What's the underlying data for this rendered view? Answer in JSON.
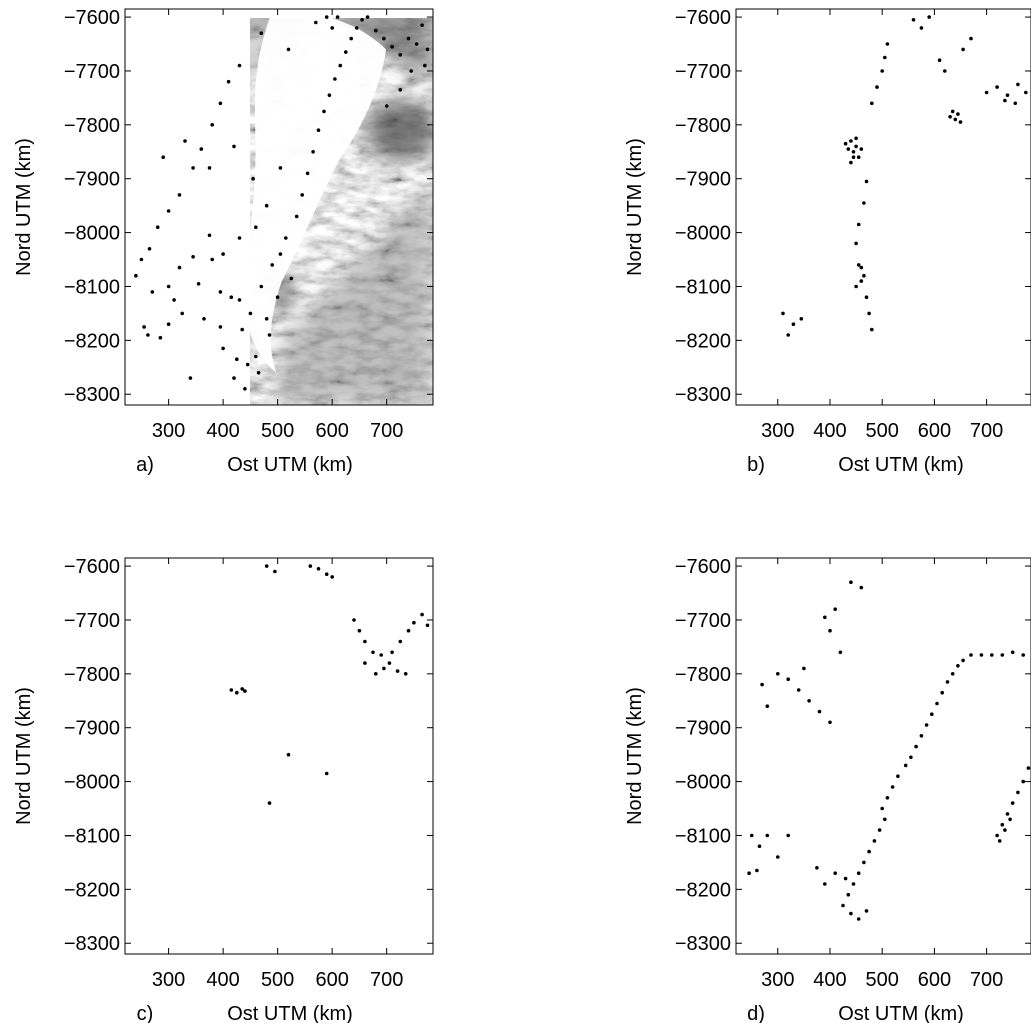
{
  "figure": {
    "ylabel": "Nord UTM (km)",
    "xlabel": "Ost UTM (km)",
    "colors": {
      "points": "#000000",
      "frame": "#000000"
    },
    "panels": [
      {
        "label": "a)"
      },
      {
        "label": "b)"
      },
      {
        "label": "c)"
      },
      {
        "label": "d)"
      }
    ]
  },
  "chart_data": [
    {
      "type": "scatter",
      "panel": "a)",
      "xlabel": "Ost UTM (km)",
      "ylabel": "Nord UTM (km)",
      "xlim": [
        220,
        785
      ],
      "ylim": [
        -8320,
        -7585
      ],
      "xticks": [
        300,
        400,
        500,
        600,
        700
      ],
      "yticks": [
        -7600,
        -7700,
        -7800,
        -7900,
        -8000,
        -8100,
        -8200,
        -8300
      ],
      "background": "grayscale satellite image of sea ice",
      "series": [
        {
          "values": [
            [
              240,
              -8080
            ],
            [
              255,
              -8175
            ],
            [
              262,
              -8190
            ],
            [
              270,
              -8110
            ],
            [
              285,
              -8195
            ],
            [
              300,
              -8170
            ],
            [
              310,
              -8125
            ],
            [
              325,
              -8150
            ],
            [
              340,
              -8270
            ],
            [
              355,
              -8095
            ],
            [
              365,
              -8160
            ],
            [
              380,
              -8050
            ],
            [
              395,
              -8175
            ],
            [
              400,
              -8215
            ],
            [
              415,
              -8120
            ],
            [
              425,
              -8235
            ],
            [
              435,
              -8180
            ],
            [
              445,
              -8245
            ],
            [
              450,
              -8150
            ],
            [
              460,
              -8230
            ],
            [
              470,
              -8100
            ],
            [
              480,
              -8160
            ],
            [
              490,
              -8060
            ],
            [
              500,
              -8120
            ],
            [
              505,
              -8040
            ],
            [
              515,
              -8010
            ],
            [
              525,
              -8085
            ],
            [
              535,
              -7970
            ],
            [
              545,
              -7930
            ],
            [
              555,
              -7890
            ],
            [
              565,
              -7850
            ],
            [
              575,
              -7810
            ],
            [
              585,
              -7775
            ],
            [
              595,
              -7745
            ],
            [
              605,
              -7715
            ],
            [
              615,
              -7690
            ],
            [
              625,
              -7665
            ],
            [
              635,
              -7640
            ],
            [
              645,
              -7620
            ],
            [
              655,
              -7605
            ],
            [
              665,
              -7600
            ],
            [
              680,
              -7625
            ],
            [
              695,
              -7640
            ],
            [
              710,
              -7655
            ],
            [
              725,
              -7670
            ],
            [
              740,
              -7640
            ],
            [
              755,
              -7650
            ],
            [
              765,
              -7615
            ],
            [
              775,
              -7660
            ],
            [
              770,
              -7690
            ],
            [
              745,
              -7700
            ],
            [
              725,
              -7735
            ],
            [
              700,
              -7765
            ],
            [
              600,
              -7620
            ],
            [
              590,
              -7600
            ],
            [
              610,
              -7600
            ],
            [
              570,
              -7610
            ],
            [
              520,
              -7660
            ],
            [
              470,
              -7630
            ],
            [
              430,
              -7690
            ],
            [
              410,
              -7720
            ],
            [
              395,
              -7760
            ],
            [
              380,
              -7800
            ],
            [
              360,
              -7845
            ],
            [
              345,
              -7880
            ],
            [
              320,
              -7930
            ],
            [
              300,
              -7960
            ],
            [
              280,
              -7990
            ],
            [
              265,
              -8030
            ],
            [
              250,
              -8050
            ],
            [
              290,
              -7860
            ],
            [
              330,
              -7830
            ],
            [
              375,
              -7880
            ],
            [
              420,
              -7840
            ],
            [
              455,
              -7900
            ],
            [
              480,
              -7950
            ],
            [
              505,
              -7880
            ],
            [
              460,
              -7990
            ],
            [
              430,
              -8010
            ],
            [
              400,
              -8040
            ],
            [
              375,
              -8005
            ],
            [
              345,
              -8045
            ],
            [
              320,
              -8065
            ],
            [
              300,
              -8100
            ],
            [
              420,
              -8270
            ],
            [
              440,
              -8290
            ],
            [
              465,
              -8260
            ],
            [
              485,
              -8190
            ],
            [
              430,
              -8125
            ],
            [
              395,
              -8110
            ]
          ]
        }
      ]
    },
    {
      "type": "scatter",
      "panel": "b)",
      "xlabel": "Ost UTM (km)",
      "ylabel": "Nord UTM (km)",
      "xlim": [
        220,
        785
      ],
      "ylim": [
        -8320,
        -7585
      ],
      "xticks": [
        300,
        400,
        500,
        600,
        700
      ],
      "yticks": [
        -7600,
        -7700,
        -7800,
        -7900,
        -8000,
        -8100,
        -8200,
        -8300
      ],
      "background": "grayscale satellite image of sea ice",
      "series": [
        {
          "values": [
            [
              430,
              -7835
            ],
            [
              435,
              -7845
            ],
            [
              440,
              -7830
            ],
            [
              445,
              -7850
            ],
            [
              450,
              -7840
            ],
            [
              455,
              -7860
            ],
            [
              440,
              -7870
            ],
            [
              450,
              -7825
            ],
            [
              460,
              -7845
            ],
            [
              445,
              -7860
            ],
            [
              630,
              -7785
            ],
            [
              640,
              -7790
            ],
            [
              645,
              -7780
            ],
            [
              635,
              -7775
            ],
            [
              650,
              -7795
            ],
            [
              700,
              -7740
            ],
            [
              720,
              -7730
            ],
            [
              740,
              -7745
            ],
            [
              760,
              -7725
            ],
            [
              775,
              -7740
            ],
            [
              755,
              -7760
            ],
            [
              735,
              -7755
            ],
            [
              480,
              -7760
            ],
            [
              490,
              -7730
            ],
            [
              500,
              -7700
            ],
            [
              505,
              -7675
            ],
            [
              510,
              -7650
            ],
            [
              575,
              -7620
            ],
            [
              590,
              -7600
            ],
            [
              560,
              -7605
            ],
            [
              470,
              -7905
            ],
            [
              465,
              -7945
            ],
            [
              455,
              -7985
            ],
            [
              450,
              -8020
            ],
            [
              455,
              -8060
            ],
            [
              460,
              -8090
            ],
            [
              470,
              -8120
            ],
            [
              475,
              -8150
            ],
            [
              480,
              -8180
            ],
            [
              460,
              -8065
            ],
            [
              465,
              -8080
            ],
            [
              450,
              -8100
            ],
            [
              330,
              -8170
            ],
            [
              320,
              -8190
            ],
            [
              310,
              -8150
            ],
            [
              345,
              -8160
            ],
            [
              620,
              -7700
            ],
            [
              610,
              -7680
            ],
            [
              655,
              -7660
            ],
            [
              670,
              -7640
            ]
          ]
        }
      ]
    },
    {
      "type": "scatter",
      "panel": "c)",
      "xlabel": "Ost UTM (km)",
      "ylabel": "Nord UTM (km)",
      "xlim": [
        220,
        785
      ],
      "ylim": [
        -8320,
        -7585
      ],
      "xticks": [
        300,
        400,
        500,
        600,
        700
      ],
      "yticks": [
        -7600,
        -7700,
        -7800,
        -7900,
        -8000,
        -8100,
        -8200,
        -8300
      ],
      "background": "grayscale satellite image of sea ice",
      "series": [
        {
          "values": [
            [
              415,
              -7830
            ],
            [
              425,
              -7835
            ],
            [
              435,
              -7828
            ],
            [
              440,
              -7832
            ],
            [
              480,
              -7600
            ],
            [
              495,
              -7610
            ],
            [
              560,
              -7600
            ],
            [
              575,
              -7605
            ],
            [
              590,
              -7615
            ],
            [
              600,
              -7620
            ],
            [
              640,
              -7700
            ],
            [
              650,
              -7720
            ],
            [
              660,
              -7740
            ],
            [
              675,
              -7760
            ],
            [
              690,
              -7765
            ],
            [
              705,
              -7780
            ],
            [
              720,
              -7795
            ],
            [
              735,
              -7800
            ],
            [
              750,
              -7705
            ],
            [
              765,
              -7690
            ],
            [
              775,
              -7710
            ],
            [
              740,
              -7720
            ],
            [
              725,
              -7740
            ],
            [
              710,
              -7760
            ],
            [
              695,
              -7790
            ],
            [
              680,
              -7800
            ],
            [
              660,
              -7780
            ],
            [
              590,
              -7985
            ],
            [
              520,
              -7950
            ],
            [
              485,
              -8040
            ]
          ]
        }
      ]
    },
    {
      "type": "scatter",
      "panel": "d)",
      "xlabel": "Ost UTM (km)",
      "ylabel": "Nord UTM (km)",
      "xlim": [
        220,
        785
      ],
      "ylim": [
        -8320,
        -7585
      ],
      "xticks": [
        300,
        400,
        500,
        600,
        700
      ],
      "yticks": [
        -7600,
        -7700,
        -7800,
        -7900,
        -8000,
        -8100,
        -8200,
        -8300
      ],
      "background": "grayscale satellite image of sea ice",
      "series": [
        {
          "values": [
            [
              500,
              -8050
            ],
            [
              510,
              -8030
            ],
            [
              520,
              -8010
            ],
            [
              530,
              -7990
            ],
            [
              545,
              -7970
            ],
            [
              555,
              -7955
            ],
            [
              565,
              -7935
            ],
            [
              575,
              -7915
            ],
            [
              585,
              -7895
            ],
            [
              595,
              -7875
            ],
            [
              605,
              -7855
            ],
            [
              615,
              -7835
            ],
            [
              625,
              -7815
            ],
            [
              635,
              -7800
            ],
            [
              645,
              -7785
            ],
            [
              655,
              -7775
            ],
            [
              670,
              -7765
            ],
            [
              690,
              -7765
            ],
            [
              710,
              -7765
            ],
            [
              730,
              -7765
            ],
            [
              750,
              -7760
            ],
            [
              770,
              -7765
            ],
            [
              505,
              -8070
            ],
            [
              495,
              -8090
            ],
            [
              485,
              -8110
            ],
            [
              475,
              -8130
            ],
            [
              465,
              -8150
            ],
            [
              455,
              -8170
            ],
            [
              445,
              -8190
            ],
            [
              435,
              -8210
            ],
            [
              425,
              -8230
            ],
            [
              440,
              -8245
            ],
            [
              455,
              -8255
            ],
            [
              470,
              -8240
            ],
            [
              430,
              -8180
            ],
            [
              410,
              -8170
            ],
            [
              390,
              -8190
            ],
            [
              375,
              -8160
            ],
            [
              250,
              -8100
            ],
            [
              265,
              -8120
            ],
            [
              280,
              -8100
            ],
            [
              300,
              -8140
            ],
            [
              320,
              -8100
            ],
            [
              245,
              -8170
            ],
            [
              260,
              -8165
            ],
            [
              300,
              -7800
            ],
            [
              320,
              -7810
            ],
            [
              340,
              -7830
            ],
            [
              360,
              -7850
            ],
            [
              380,
              -7870
            ],
            [
              400,
              -7890
            ],
            [
              350,
              -7790
            ],
            [
              270,
              -7820
            ],
            [
              280,
              -7860
            ],
            [
              420,
              -7760
            ],
            [
              400,
              -7720
            ],
            [
              390,
              -7695
            ],
            [
              410,
              -7680
            ],
            [
              440,
              -7630
            ],
            [
              460,
              -7640
            ],
            [
              720,
              -8100
            ],
            [
              730,
              -8080
            ],
            [
              740,
              -8060
            ],
            [
              750,
              -8040
            ],
            [
              760,
              -8020
            ],
            [
              745,
              -8070
            ],
            [
              735,
              -8090
            ],
            [
              725,
              -8110
            ],
            [
              770,
              -8000
            ],
            [
              780,
              -7975
            ]
          ]
        }
      ]
    }
  ]
}
